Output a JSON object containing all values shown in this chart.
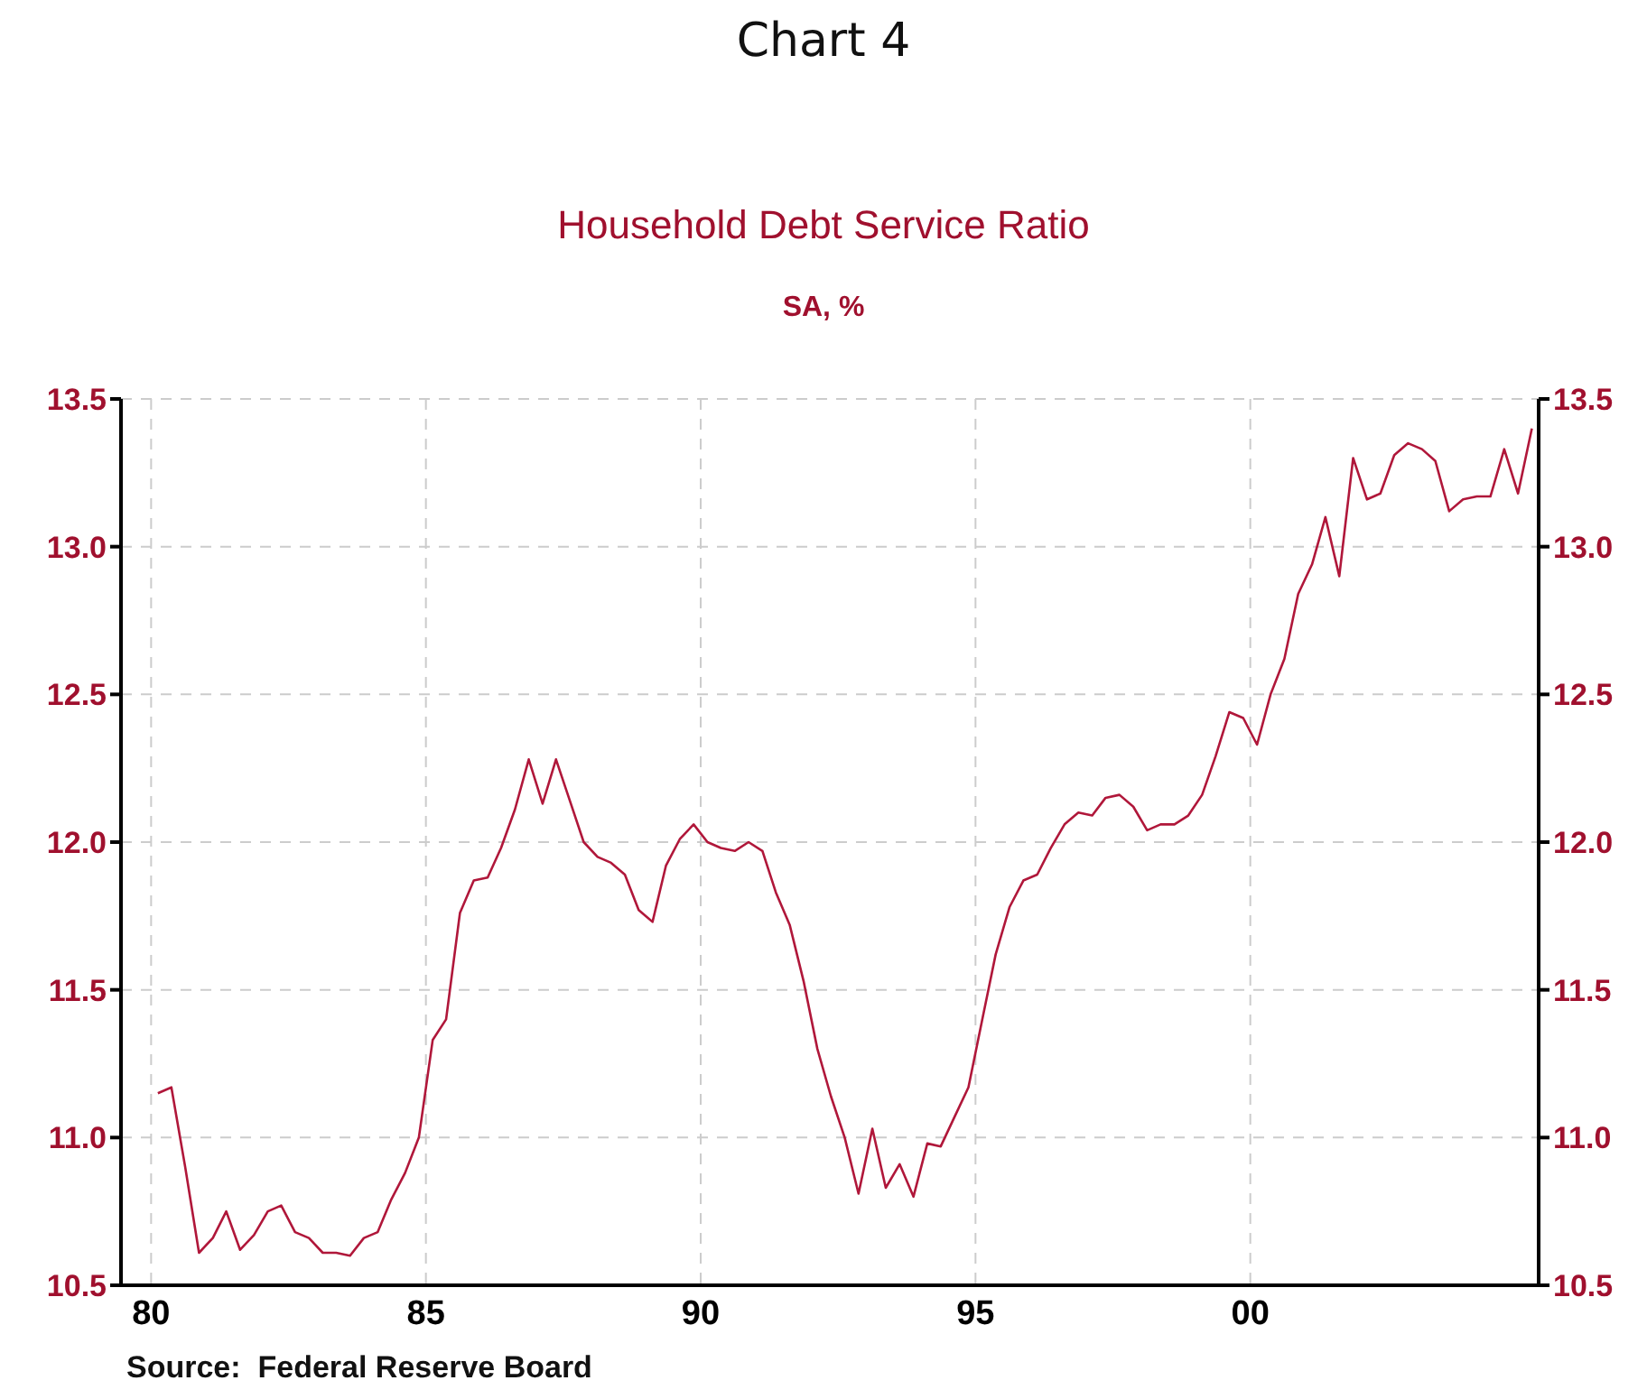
{
  "chart_data": {
    "type": "line",
    "title": "Chart 4",
    "subtitle": "Household Debt Service Ratio",
    "ylabel": "SA, %",
    "annotations": [
      "Source:  Federal Reserve Board"
    ],
    "x": [
      "1980-02-15",
      "1980-05-15",
      "1980-08-15",
      "1980-11-15",
      "1981-02-15",
      "1981-05-15",
      "1981-08-15",
      "1981-11-15",
      "1982-02-15",
      "1982-05-15",
      "1982-08-15",
      "1982-11-15",
      "1983-02-15",
      "1983-05-15",
      "1983-08-15",
      "1983-11-15",
      "1984-02-15",
      "1984-05-15",
      "1984-08-15",
      "1984-11-15",
      "1985-02-15",
      "1985-05-15",
      "1985-08-15",
      "1985-11-15",
      "1986-02-15",
      "1986-05-15",
      "1986-08-15",
      "1986-11-15",
      "1987-02-15",
      "1987-05-15",
      "1987-08-15",
      "1987-11-15",
      "1988-02-15",
      "1988-05-15",
      "1988-08-15",
      "1988-11-15",
      "1989-02-15",
      "1989-05-15",
      "1989-08-15",
      "1989-11-15",
      "1990-02-15",
      "1990-05-15",
      "1990-08-15",
      "1990-11-15",
      "1991-02-15",
      "1991-05-15",
      "1991-08-15",
      "1991-11-15",
      "1992-02-15",
      "1992-05-15",
      "1992-08-15",
      "1992-11-15",
      "1993-02-15",
      "1993-05-15",
      "1993-08-15",
      "1993-11-15",
      "1994-02-15",
      "1994-05-15",
      "1994-08-15",
      "1994-11-15",
      "1995-02-15",
      "1995-05-15",
      "1995-08-15",
      "1995-11-15",
      "1996-02-15",
      "1996-05-15",
      "1996-08-15",
      "1996-11-15",
      "1997-02-15",
      "1997-05-15",
      "1997-08-15",
      "1997-11-15",
      "1998-02-15",
      "1998-05-15",
      "1998-08-15",
      "1998-11-15",
      "1999-02-15",
      "1999-05-15",
      "1999-08-15",
      "1999-11-15",
      "2000-02-15",
      "2000-05-15",
      "2000-08-15",
      "2000-11-15",
      "2001-02-15",
      "2001-05-15",
      "2001-08-15",
      "2001-11-15",
      "2002-02-15",
      "2002-05-15",
      "2002-08-15",
      "2002-11-15",
      "2003-02-15",
      "2003-05-15",
      "2003-08-15",
      "2003-11-15",
      "2004-02-15",
      "2004-05-15",
      "2004-08-15",
      "2004-11-15",
      "2005-02-15"
    ],
    "series": [
      {
        "color": "#b0173a",
        "values": [
          11.15,
          11.17,
          10.9,
          10.61,
          10.66,
          10.75,
          10.62,
          10.67,
          10.75,
          10.77,
          10.68,
          10.66,
          10.61,
          10.61,
          10.6,
          10.66,
          10.68,
          10.79,
          10.88,
          11.0,
          11.33,
          11.4,
          11.76,
          11.87,
          11.88,
          11.98,
          12.11,
          12.28,
          12.13,
          12.28,
          12.14,
          12.0,
          11.95,
          11.93,
          11.89,
          11.77,
          11.73,
          11.92,
          12.01,
          12.06,
          12.0,
          11.98,
          11.97,
          12.0,
          11.97,
          11.83,
          11.72,
          11.53,
          11.3,
          11.14,
          11.0,
          10.81,
          11.03,
          10.83,
          10.91,
          10.8,
          10.98,
          10.97,
          11.07,
          11.17,
          11.4,
          11.62,
          11.78,
          11.87,
          11.89,
          11.98,
          12.06,
          12.1,
          12.09,
          12.15,
          12.16,
          12.12,
          12.04,
          12.06,
          12.06,
          12.09,
          12.16,
          12.29,
          12.44,
          12.42,
          12.33,
          12.5,
          12.62,
          12.84,
          12.94,
          13.1,
          12.9,
          13.3,
          13.16,
          13.18,
          13.31,
          13.35,
          13.33,
          13.29,
          13.12,
          13.16,
          13.17,
          13.17,
          13.33,
          13.18,
          13.4
        ]
      }
    ],
    "xlim": [
      "1979-06-15",
      "2005-04-01"
    ],
    "xticks": [
      {
        "value": "1980",
        "label": "80"
      },
      {
        "value": "1985",
        "label": "85"
      },
      {
        "value": "1990",
        "label": "90"
      },
      {
        "value": "1995",
        "label": "95"
      },
      {
        "value": "2000",
        "label": "00"
      }
    ],
    "ylim": [
      10.5,
      13.5
    ],
    "yticks": [
      {
        "value": 10.5,
        "label": "10.5"
      },
      {
        "value": 11,
        "label": "11.0"
      },
      {
        "value": 11.5,
        "label": "11.5"
      },
      {
        "value": 12,
        "label": "12.0"
      },
      {
        "value": 12.5,
        "label": "12.5"
      },
      {
        "value": 13,
        "label": "13.0"
      },
      {
        "value": 13.5,
        "label": "13.5"
      }
    ],
    "y2lim": [
      10.5,
      13.5
    ],
    "y2ticks": [
      {
        "value": 10.5,
        "label": "10.5"
      },
      {
        "value": 11,
        "label": "11.0"
      },
      {
        "value": 11.5,
        "label": "11.5"
      },
      {
        "value": 12,
        "label": "12.0"
      },
      {
        "value": 12.5,
        "label": "12.5"
      },
      {
        "value": 13,
        "label": "13.0"
      },
      {
        "value": 13.5,
        "label": "13.5"
      }
    ],
    "grid": true,
    "legend": false,
    "marker": "none",
    "line_style": "solid"
  }
}
